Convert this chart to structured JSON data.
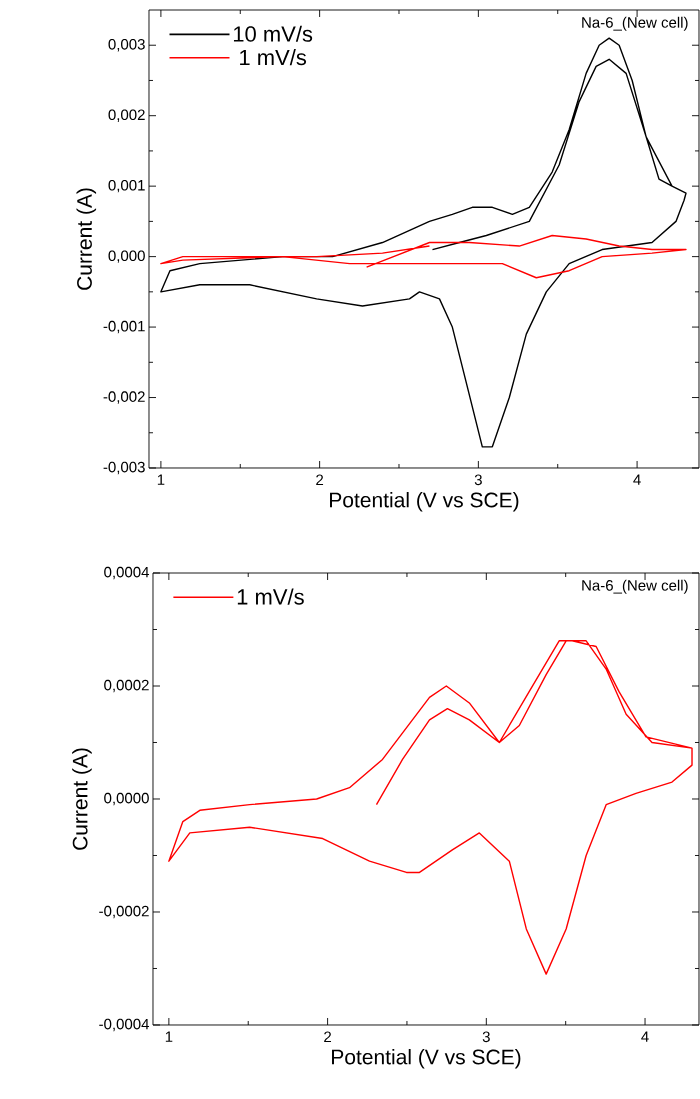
{
  "chart_data": [
    {
      "type": "line",
      "xlabel": "Potential (V vs SCE)",
      "ylabel": "Current (A)",
      "xlim": [
        0.925,
        4.39
      ],
      "ylim": [
        -0.003,
        0.0035
      ],
      "xticks": [
        1,
        2,
        3,
        4
      ],
      "yticks": [
        {
          "value": -0.003,
          "label": "-0,003"
        },
        {
          "value": -0.002,
          "label": "-0,002"
        },
        {
          "value": -0.001,
          "label": "-0,001"
        },
        {
          "value": 0,
          "label": "0,000"
        },
        {
          "value": 0.001,
          "label": "0,001"
        },
        {
          "value": 0.002,
          "label": "0,002"
        },
        {
          "value": 0.003,
          "label": "0,003"
        }
      ],
      "legend": "top left",
      "annotations": [
        "Na-6_(New cell)"
      ],
      "series": [
        {
          "name": "10 mV/s",
          "color": "#000000",
          "x": [
            2.711,
            2.881,
            3.05,
            3.321,
            3.509,
            3.635,
            3.742,
            3.824,
            3.931,
            4.057,
            4.138,
            4.22,
            4.308,
            4.296,
            4.245,
            4.094,
            3.78,
            3.572,
            3.428,
            3.302,
            3.195,
            3.088,
            3.025,
            2.925,
            2.836,
            2.755,
            2.629,
            2.566,
            2.27,
            1.981,
            1.56,
            1.245,
            1.0,
            1.057,
            1.245,
            1.767,
            2.082,
            2.396,
            2.692,
            2.836,
            2.962,
            3.088,
            3.214,
            3.321,
            3.465,
            3.572,
            3.679,
            3.761,
            3.824,
            3.887,
            3.969,
            4.057,
            4.22,
            4.308
          ],
          "values": [
            0.0001,
            0.0002,
            0.0003,
            0.0005,
            0.0013,
            0.0022,
            0.0027,
            0.0028,
            0.0026,
            0.0017,
            0.0011,
            0.001,
            0.0009,
            0.0008,
            0.0005,
            0.0002,
            0.0001,
            -0.0001,
            -0.0005,
            -0.0011,
            -0.002,
            -0.0027,
            -0.0027,
            -0.0018,
            -0.001,
            -0.0006,
            -0.0005,
            -0.0006,
            -0.0007,
            -0.0006,
            -0.0004,
            -0.0004,
            -0.0005,
            -0.0002,
            -0.0001,
            0.0,
            0.0,
            0.0002,
            0.0005,
            0.0006,
            0.0007,
            0.0007,
            0.0006,
            0.0007,
            0.0012,
            0.0018,
            0.0026,
            0.003,
            0.0031,
            0.003,
            0.0025,
            0.0017,
            0.001,
            0.0009
          ]
        },
        {
          "name": "1 mV/s",
          "color": "#ff0000",
          "x": [
            2.296,
            2.692,
            2.943,
            3.258,
            3.465,
            3.679,
            3.887,
            4.094,
            4.308,
            4.094,
            3.78,
            3.572,
            3.365,
            3.151,
            2.629,
            2.189,
            1.767,
            1.138,
            1.0,
            1.138,
            1.981,
            2.396,
            2.692
          ],
          "values": [
            -0.00015,
            0.0002,
            0.0002,
            0.00015,
            0.0003,
            0.00025,
            0.00015,
            0.0001,
            0.0001,
            5e-05,
            0.0,
            -0.0002,
            -0.0003,
            -0.0001,
            -0.0001,
            -0.0001,
            0.0,
            -5e-05,
            -0.0001,
            0.0,
            0.0,
            5e-05,
            0.00015
          ]
        }
      ]
    },
    {
      "type": "line",
      "xlabel": "Potential (V vs SCE)",
      "ylabel": "Current (A)",
      "xlim": [
        0.9,
        4.34
      ],
      "ylim": [
        -0.0004,
        0.0004
      ],
      "xticks": [
        1,
        2,
        3,
        4
      ],
      "yticks": [
        {
          "value": -0.0004,
          "label": "-0,0004"
        },
        {
          "value": -0.0002,
          "label": "-0,0002"
        },
        {
          "value": 0,
          "label": "0,0000"
        },
        {
          "value": 0.0002,
          "label": "0,0002"
        },
        {
          "value": 0.0004,
          "label": "0,0004"
        }
      ],
      "legend": "top left",
      "annotations": [
        "Na-6_(New cell)"
      ],
      "series": [
        {
          "name": "1 mV/s",
          "color": "#ff0000",
          "x": [
            2.308,
            2.472,
            2.642,
            2.755,
            2.893,
            3.082,
            3.208,
            3.377,
            3.503,
            3.629,
            3.755,
            3.881,
            4.044,
            4.296,
            4.296,
            4.17,
            3.943,
            3.755,
            3.629,
            3.503,
            3.377,
            3.252,
            3.145,
            2.956,
            2.786,
            2.579,
            2.497,
            2.264,
            1.969,
            1.509,
            1.132,
            1.0,
            1.088,
            1.195,
            1.509,
            1.931,
            2.138,
            2.346,
            2.642,
            2.748,
            2.893,
            3.082,
            3.27,
            3.459,
            3.541,
            3.692,
            3.836,
            4.006,
            4.296
          ],
          "values": [
            -1e-05,
            7e-05,
            0.00014,
            0.00016,
            0.00014,
            0.0001,
            0.00013,
            0.00022,
            0.00028,
            0.00028,
            0.00023,
            0.00015,
            0.0001,
            9e-05,
            6e-05,
            3e-05,
            1e-05,
            -1e-05,
            -0.0001,
            -0.00023,
            -0.00031,
            -0.00023,
            -0.00011,
            -6e-05,
            -9e-05,
            -0.00013,
            -0.00013,
            -0.00011,
            -7e-05,
            -5e-05,
            -6e-05,
            -0.00011,
            -4e-05,
            -2e-05,
            -1e-05,
            0.0,
            2e-05,
            7e-05,
            0.00018,
            0.0002,
            0.00017,
            0.0001,
            0.00019,
            0.00028,
            0.00028,
            0.00027,
            0.00019,
            0.00011,
            9e-05
          ]
        }
      ]
    }
  ]
}
